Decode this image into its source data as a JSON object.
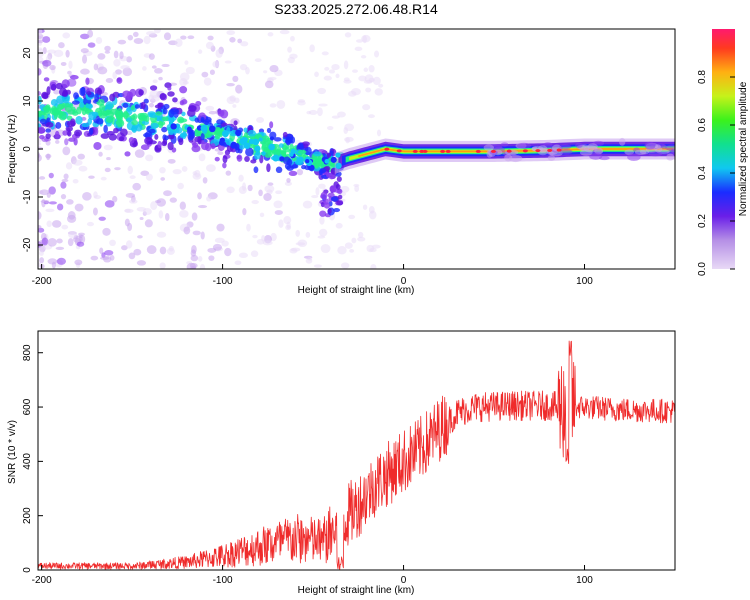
{
  "title": "S233.2025.272.06.48.R14",
  "chart_data": [
    {
      "type": "heatmap",
      "xlabel": "Height of straight line (km)",
      "ylabel": "Frequency (Hz)",
      "xlim": [
        -202,
        150
      ],
      "ylim": [
        -25,
        25
      ],
      "xticks": [
        -200,
        -100,
        0,
        100
      ],
      "yticks": [
        -20,
        -10,
        0,
        10,
        20
      ],
      "colorbar": {
        "label": "Normalized spectral amplitude",
        "range": [
          0,
          1
        ],
        "ticks": [
          0.0,
          0.2,
          0.4,
          0.6,
          0.8
        ]
      },
      "ridge": {
        "x": [
          -200,
          -170,
          -140,
          -120,
          -100,
          -80,
          -60,
          -45,
          -38,
          -30,
          -20,
          -10,
          0,
          20,
          50,
          80,
          100,
          150
        ],
        "y": [
          8,
          8,
          6,
          5,
          3,
          1,
          -1,
          -3,
          -3,
          -2,
          -1,
          0,
          -0.5,
          -0.5,
          -0.5,
          -0.3,
          0,
          0
        ]
      }
    },
    {
      "type": "line",
      "xlabel": "Height of straight line (km)",
      "ylabel": "SNR (10 * v/v)",
      "xlim": [
        -202,
        150
      ],
      "ylim": [
        0,
        880
      ],
      "xticks": [
        -200,
        -100,
        0,
        100
      ],
      "yticks": [
        0,
        200,
        400,
        600,
        800
      ],
      "series": [
        {
          "name": "SNR",
          "color": "#ef2b2b",
          "envelope_x": [
            -202,
            -150,
            -120,
            -100,
            -80,
            -60,
            -45,
            -35,
            -25,
            -15,
            0,
            10,
            20,
            30,
            40,
            60,
            80,
            88,
            92,
            96,
            100,
            120,
            150
          ],
          "envelope_y": [
            15,
            15,
            30,
            55,
            90,
            120,
            110,
            170,
            240,
            320,
            400,
            450,
            520,
            580,
            600,
            605,
            605,
            600,
            620,
            600,
            600,
            590,
            585
          ]
        }
      ]
    }
  ]
}
